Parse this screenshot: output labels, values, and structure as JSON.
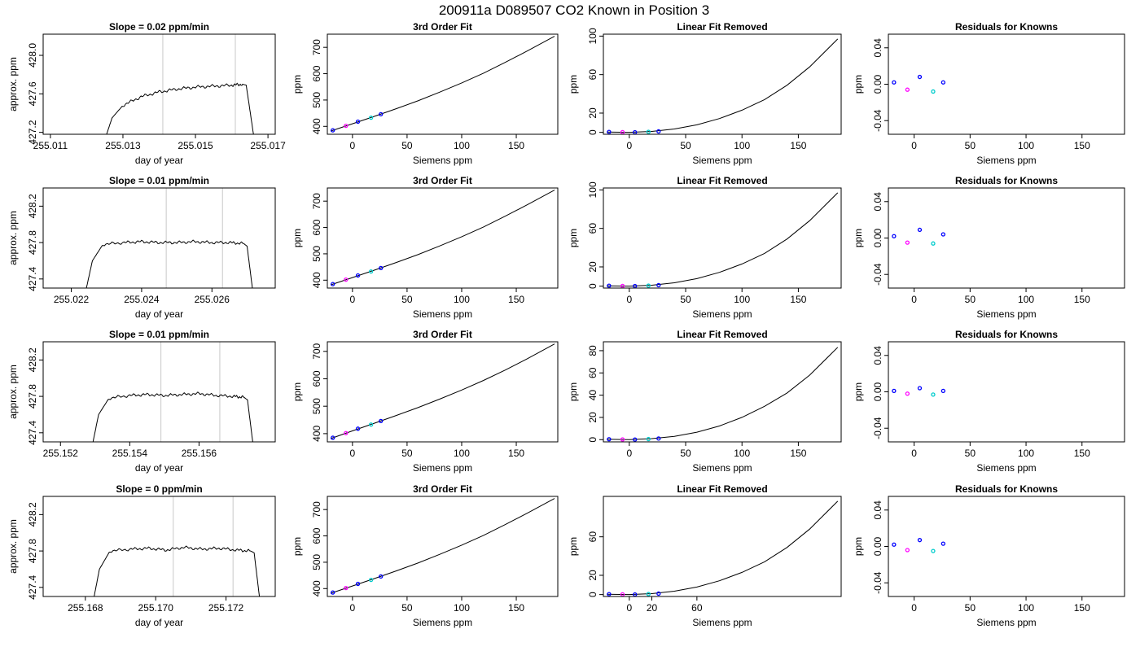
{
  "suptitle": "200911a     D089507   CO2 Known in Position  3",
  "chart_data": [
    {
      "type": "line",
      "row": 1,
      "panel": "time",
      "title": "Slope =  0.02  ppm/min",
      "xlabel": "day of year",
      "ylabel": "approx. ppm",
      "xlim": [
        255.0108,
        255.0172
      ],
      "ylim": [
        427.18,
        428.22
      ],
      "xticks": [
        "255.011",
        "255.013",
        "255.015",
        "255.017"
      ],
      "xtick_values": [
        255.011,
        255.013,
        255.015,
        255.017
      ],
      "yticks": [
        "427.2",
        "427.6",
        "428.0"
      ],
      "ytick_values": [
        427.2,
        427.6,
        428.0
      ],
      "vlines": [
        255.0141,
        255.0161
      ],
      "x": [
        255.01255,
        255.0127,
        255.013,
        255.0135,
        255.014,
        255.0145,
        255.015,
        255.0155,
        255.016,
        255.0163,
        255.0164,
        255.0166
      ],
      "y": [
        427.18,
        427.35,
        427.48,
        427.57,
        427.62,
        427.65,
        427.67,
        427.68,
        427.69,
        427.7,
        427.69,
        427.18
      ]
    },
    {
      "type": "line",
      "row": 1,
      "panel": "fit",
      "title": "3rd Order Fit",
      "xlabel": "Siemens ppm",
      "ylabel": "ppm",
      "xlim": [
        -23,
        188
      ],
      "ylim": [
        370,
        750
      ],
      "xticks": [
        "0",
        "50",
        "100",
        "150"
      ],
      "xtick_values": [
        0,
        50,
        100,
        150
      ],
      "yticks": [
        "400",
        "500",
        "600",
        "700"
      ],
      "ytick_values": [
        400,
        500,
        600,
        700
      ],
      "curve_x": [
        -20,
        0,
        20,
        40,
        60,
        80,
        100,
        120,
        140,
        160,
        185
      ],
      "curve_y": [
        382,
        410,
        438,
        467,
        497,
        530,
        565,
        602,
        643,
        686,
        742
      ],
      "points_x": [
        -18,
        -6,
        5,
        17,
        26
      ],
      "points_y": [
        385,
        402,
        418,
        433,
        446
      ]
    },
    {
      "type": "line",
      "row": 1,
      "panel": "linear_removed",
      "title": "Linear Fit Removed",
      "xlabel": "Siemens ppm",
      "ylabel": "ppm",
      "xlim": [
        -23,
        188
      ],
      "ylim": [
        -2,
        102
      ],
      "xticks": [
        "0",
        "50",
        "100",
        "150"
      ],
      "xtick_values": [
        0,
        50,
        100,
        150
      ],
      "yticks": [
        "0",
        "20",
        "60",
        "100"
      ],
      "ytick_values": [
        0,
        20,
        60,
        100
      ],
      "curve_x": [
        -20,
        0,
        20,
        40,
        60,
        80,
        100,
        120,
        140,
        160,
        185
      ],
      "curve_y": [
        0.4,
        0,
        1.0,
        3.5,
        7.8,
        14.3,
        23,
        34,
        49,
        68,
        97
      ],
      "points_x": [
        -18,
        -6,
        5,
        17,
        26
      ],
      "points_y": [
        0.4,
        0.2,
        0.1,
        0.5,
        1.0
      ]
    },
    {
      "type": "scatter",
      "row": 1,
      "panel": "residuals",
      "title": "Residuals for Knowns",
      "xlabel": "Siemens ppm",
      "ylabel": "ppm",
      "xlim": [
        -23,
        188
      ],
      "ylim": [
        -0.055,
        0.055
      ],
      "xticks": [
        "0",
        "50",
        "100",
        "150"
      ],
      "xtick_values": [
        0,
        50,
        100,
        150
      ],
      "yticks": [
        "-0.04",
        "0.00",
        "0.04"
      ],
      "ytick_values": [
        -0.04,
        0,
        0.04
      ],
      "points_x": [
        -18,
        -6,
        5,
        17,
        26
      ],
      "points_y": [
        0.002,
        -0.006,
        0.008,
        -0.008,
        0.002
      ]
    },
    {
      "type": "line",
      "row": 2,
      "panel": "time",
      "title": "Slope =  0.01  ppm/min",
      "xlabel": "day of year",
      "ylabel": "approx. ppm",
      "xlim": [
        255.0212,
        255.0278
      ],
      "ylim": [
        427.3,
        428.4
      ],
      "xticks": [
        "255.022",
        "255.024",
        "255.026"
      ],
      "xtick_values": [
        255.022,
        255.024,
        255.026
      ],
      "yticks": [
        "427.4",
        "427.8",
        "428.2"
      ],
      "ytick_values": [
        427.4,
        427.8,
        428.2
      ],
      "vlines": [
        255.0247,
        255.0263
      ],
      "x": [
        255.02243,
        255.0226,
        255.0229,
        255.0235,
        255.024,
        255.0245,
        255.025,
        255.0255,
        255.026,
        255.0265,
        255.0269,
        255.027,
        255.02715
      ],
      "y": [
        427.3,
        427.6,
        427.78,
        427.8,
        427.81,
        427.8,
        427.8,
        427.81,
        427.8,
        427.8,
        427.79,
        427.76,
        427.3
      ]
    },
    {
      "type": "line",
      "row": 2,
      "panel": "fit",
      "title": "3rd Order Fit",
      "xlabel": "Siemens ppm",
      "ylabel": "ppm",
      "xlim": [
        -23,
        188
      ],
      "ylim": [
        370,
        750
      ],
      "xticks": [
        "0",
        "50",
        "100",
        "150"
      ],
      "xtick_values": [
        0,
        50,
        100,
        150
      ],
      "yticks": [
        "400",
        "500",
        "600",
        "700"
      ],
      "ytick_values": [
        400,
        500,
        600,
        700
      ],
      "curve_x": [
        -20,
        0,
        20,
        40,
        60,
        80,
        100,
        120,
        140,
        160,
        185
      ],
      "curve_y": [
        382,
        410,
        438,
        467,
        497,
        530,
        565,
        602,
        643,
        686,
        742
      ],
      "points_x": [
        -18,
        -6,
        5,
        17,
        26
      ],
      "points_y": [
        385,
        402,
        418,
        433,
        446
      ]
    },
    {
      "type": "line",
      "row": 2,
      "panel": "linear_removed",
      "title": "Linear Fit Removed",
      "xlabel": "Siemens ppm",
      "ylabel": "ppm",
      "xlim": [
        -23,
        188
      ],
      "ylim": [
        -2,
        102
      ],
      "xticks": [
        "0",
        "50",
        "100",
        "150"
      ],
      "xtick_values": [
        0,
        50,
        100,
        150
      ],
      "yticks": [
        "0",
        "20",
        "60",
        "100"
      ],
      "ytick_values": [
        0,
        20,
        60,
        100
      ],
      "curve_x": [
        -20,
        0,
        20,
        40,
        60,
        80,
        100,
        120,
        140,
        160,
        185
      ],
      "curve_y": [
        0.4,
        0,
        1.0,
        3.5,
        7.8,
        14.3,
        23,
        34,
        49,
        68,
        97
      ],
      "points_x": [
        -18,
        -6,
        5,
        17,
        26
      ],
      "points_y": [
        0.4,
        0.2,
        0.1,
        0.5,
        1.0
      ]
    },
    {
      "type": "scatter",
      "row": 2,
      "panel": "residuals",
      "title": "Residuals for Knowns",
      "xlabel": "Siemens ppm",
      "ylabel": "ppm",
      "xlim": [
        -23,
        188
      ],
      "ylim": [
        -0.055,
        0.055
      ],
      "xticks": [
        "0",
        "50",
        "100",
        "150"
      ],
      "xtick_values": [
        0,
        50,
        100,
        150
      ],
      "yticks": [
        "-0.04",
        "0.00",
        "0.04"
      ],
      "ytick_values": [
        -0.04,
        0,
        0.04
      ],
      "points_x": [
        -18,
        -6,
        5,
        17,
        26
      ],
      "points_y": [
        0.002,
        -0.005,
        0.009,
        -0.006,
        0.004
      ]
    },
    {
      "type": "line",
      "row": 3,
      "panel": "time",
      "title": "Slope =  0.01  ppm/min",
      "xlabel": "day of year",
      "ylabel": "approx. ppm",
      "xlim": [
        255.1515,
        255.1582
      ],
      "ylim": [
        427.3,
        428.4
      ],
      "xticks": [
        "255.152",
        "255.154",
        "255.156"
      ],
      "xtick_values": [
        255.152,
        255.154,
        255.156
      ],
      "yticks": [
        "427.4",
        "427.8",
        "428.2"
      ],
      "ytick_values": [
        427.4,
        427.8,
        428.2
      ],
      "vlines": [
        255.1549,
        255.1566
      ],
      "x": [
        255.15294,
        255.1531,
        255.1534,
        255.154,
        255.1545,
        255.155,
        255.1555,
        255.156,
        255.1565,
        255.157,
        255.1573,
        255.1574,
        255.15755
      ],
      "y": [
        427.3,
        427.6,
        427.78,
        427.81,
        427.82,
        427.81,
        427.82,
        427.83,
        427.81,
        427.8,
        427.79,
        427.76,
        427.3
      ]
    },
    {
      "type": "line",
      "row": 3,
      "panel": "fit",
      "title": "3rd Order Fit",
      "xlabel": "Siemens ppm",
      "ylabel": "ppm",
      "xlim": [
        -23,
        188
      ],
      "ylim": [
        370,
        735
      ],
      "xticks": [
        "0",
        "50",
        "100",
        "150"
      ],
      "xtick_values": [
        0,
        50,
        100,
        150
      ],
      "yticks": [
        "400",
        "500",
        "600",
        "700"
      ],
      "ytick_values": [
        400,
        500,
        600,
        700
      ],
      "curve_x": [
        -20,
        0,
        20,
        40,
        60,
        80,
        100,
        120,
        140,
        160,
        185
      ],
      "curve_y": [
        382,
        410,
        438,
        466,
        495,
        526,
        559,
        594,
        632,
        673,
        727
      ],
      "points_x": [
        -18,
        -6,
        5,
        17,
        26
      ],
      "points_y": [
        385,
        402,
        418,
        433,
        446
      ]
    },
    {
      "type": "line",
      "row": 3,
      "panel": "linear_removed",
      "title": "Linear Fit Removed",
      "xlabel": "Siemens ppm",
      "ylabel": "ppm",
      "xlim": [
        -23,
        188
      ],
      "ylim": [
        -2,
        88
      ],
      "xticks": [
        "0",
        "50",
        "100",
        "150"
      ],
      "xtick_values": [
        0,
        50,
        100,
        150
      ],
      "yticks": [
        "0",
        "20",
        "40",
        "60",
        "80"
      ],
      "ytick_values": [
        0,
        20,
        40,
        60,
        80
      ],
      "curve_x": [
        -20,
        0,
        20,
        40,
        60,
        80,
        100,
        120,
        140,
        160,
        185
      ],
      "curve_y": [
        0.4,
        0,
        0.9,
        3.0,
        6.7,
        12.3,
        20,
        30,
        42,
        58,
        83
      ],
      "points_x": [
        -18,
        -6,
        5,
        17,
        26
      ],
      "points_y": [
        0.4,
        0.2,
        0.1,
        0.5,
        1.0
      ]
    },
    {
      "type": "scatter",
      "row": 3,
      "panel": "residuals",
      "title": "Residuals for Knowns",
      "xlabel": "Siemens ppm",
      "ylabel": "ppm",
      "xlim": [
        -23,
        188
      ],
      "ylim": [
        -0.055,
        0.055
      ],
      "xticks": [
        "0",
        "50",
        "100",
        "150"
      ],
      "xtick_values": [
        0,
        50,
        100,
        150
      ],
      "yticks": [
        "-0.04",
        "0.00",
        "0.04"
      ],
      "ytick_values": [
        -0.04,
        0,
        0.04
      ],
      "points_x": [
        -18,
        -6,
        5,
        17,
        26
      ],
      "points_y": [
        0.001,
        -0.002,
        0.004,
        -0.003,
        0.001
      ]
    },
    {
      "type": "line",
      "row": 4,
      "panel": "time",
      "title": "Slope =  0  ppm/min",
      "xlabel": "day of year",
      "ylabel": "approx. ppm",
      "xlim": [
        255.1668,
        255.1734
      ],
      "ylim": [
        427.3,
        428.4
      ],
      "xticks": [
        "255.168",
        "255.170",
        "255.172"
      ],
      "xtick_values": [
        255.168,
        255.17,
        255.172
      ],
      "yticks": [
        "427.4",
        "427.8",
        "428.2"
      ],
      "ytick_values": [
        427.4,
        427.8,
        428.2
      ],
      "vlines": [
        255.1705,
        255.1722
      ],
      "x": [
        255.16825,
        255.1684,
        255.1687,
        255.1693,
        255.1698,
        255.1703,
        255.1708,
        255.1713,
        255.1718,
        255.1723,
        255.1727,
        255.1728,
        255.17295
      ],
      "y": [
        427.3,
        427.6,
        427.8,
        427.82,
        427.83,
        427.81,
        427.84,
        427.82,
        427.83,
        427.81,
        427.8,
        427.78,
        427.3
      ]
    },
    {
      "type": "line",
      "row": 4,
      "panel": "fit",
      "title": "3rd Order Fit",
      "xlabel": "Siemens ppm",
      "ylabel": "ppm",
      "xlim": [
        -23,
        188
      ],
      "ylim": [
        370,
        750
      ],
      "xticks": [
        "0",
        "50",
        "100",
        "150"
      ],
      "xtick_values": [
        0,
        50,
        100,
        150
      ],
      "yticks": [
        "400",
        "500",
        "600",
        "700"
      ],
      "ytick_values": [
        400,
        500,
        600,
        700
      ],
      "curve_x": [
        -20,
        0,
        20,
        40,
        60,
        80,
        100,
        120,
        140,
        160,
        185
      ],
      "curve_y": [
        382,
        410,
        438,
        467,
        497,
        530,
        565,
        602,
        643,
        686,
        742
      ],
      "points_x": [
        -18,
        -6,
        5,
        17,
        26
      ],
      "points_y": [
        385,
        402,
        418,
        433,
        446
      ]
    },
    {
      "type": "line",
      "row": 4,
      "panel": "linear_removed",
      "title": "Linear Fit Removed",
      "xlabel": "Siemens ppm",
      "ylabel": "ppm",
      "xlim": [
        -23,
        188
      ],
      "ylim": [
        -2,
        102
      ],
      "xticks": [
        "0",
        "20",
        "60"
      ],
      "xtick_values": [
        0,
        20,
        60
      ],
      "yticks": [
        "0",
        "20",
        "60"
      ],
      "ytick_values": [
        0,
        20,
        60
      ],
      "curve_x": [
        -20,
        0,
        20,
        40,
        60,
        80,
        100,
        120,
        140,
        160,
        185
      ],
      "curve_y": [
        0.4,
        0,
        1.0,
        3.5,
        7.8,
        14.3,
        23,
        34,
        49,
        68,
        97
      ],
      "points_x": [
        -18,
        -6,
        5,
        17,
        26
      ],
      "points_y": [
        0.4,
        0.2,
        0.1,
        0.5,
        1.0
      ]
    },
    {
      "type": "scatter",
      "row": 4,
      "panel": "residuals",
      "title": "Residuals for Knowns",
      "xlabel": "Siemens ppm",
      "ylabel": "ppm",
      "xlim": [
        -23,
        188
      ],
      "ylim": [
        -0.055,
        0.055
      ],
      "xticks": [
        "0",
        "50",
        "100",
        "150"
      ],
      "xtick_values": [
        0,
        50,
        100,
        150
      ],
      "yticks": [
        "-0.04",
        "0.00",
        "0.04"
      ],
      "ytick_values": [
        -0.04,
        0,
        0.04
      ],
      "points_x": [
        -18,
        -6,
        5,
        17,
        26
      ],
      "points_y": [
        0.002,
        -0.004,
        0.007,
        -0.005,
        0.003
      ]
    }
  ]
}
